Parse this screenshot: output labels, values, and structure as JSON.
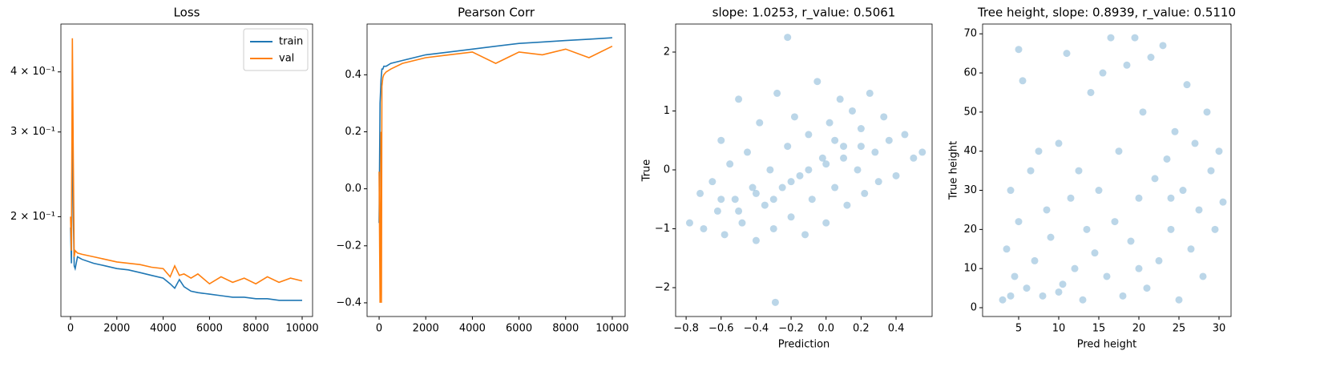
{
  "chart_data": [
    {
      "type": "line",
      "title": "Loss",
      "log_y": true,
      "legend": "upper right",
      "x": [
        0,
        40,
        80,
        120,
        160,
        200,
        300,
        500,
        1000,
        1500,
        2000,
        2500,
        3000,
        3500,
        4000,
        4300,
        4500,
        4700,
        4900,
        5200,
        5500,
        6000,
        6500,
        7000,
        7500,
        8000,
        8500,
        9000,
        9500,
        10000
      ],
      "series": [
        {
          "name": "train",
          "color": "#1f77b4",
          "values": [
            0.19,
            0.16,
            0.35,
            0.2,
            0.158,
            0.156,
            0.165,
            0.163,
            0.16,
            0.158,
            0.156,
            0.155,
            0.153,
            0.151,
            0.149,
            0.145,
            0.142,
            0.148,
            0.143,
            0.14,
            0.139,
            0.138,
            0.137,
            0.136,
            0.136,
            0.135,
            0.135,
            0.134,
            0.134,
            0.134
          ]
        },
        {
          "name": "val",
          "color": "#ff7f0e",
          "values": [
            0.2,
            0.17,
            0.47,
            0.26,
            0.165,
            0.17,
            0.168,
            0.167,
            0.165,
            0.163,
            0.161,
            0.16,
            0.159,
            0.157,
            0.156,
            0.15,
            0.158,
            0.151,
            0.152,
            0.149,
            0.152,
            0.145,
            0.15,
            0.146,
            0.149,
            0.145,
            0.15,
            0.146,
            0.149,
            0.147
          ]
        }
      ],
      "xlim": [
        -415,
        10450
      ],
      "xticks": [
        0,
        2000,
        4000,
        6000,
        8000,
        10000
      ],
      "ylim": [
        0.124,
        0.503
      ],
      "yticks": [
        {
          "value": 0.2,
          "label": "2 × 10⁻¹"
        },
        {
          "value": 0.3,
          "label": "3 × 10⁻¹"
        },
        {
          "value": 0.4,
          "label": "4 × 10⁻¹"
        }
      ]
    },
    {
      "type": "line",
      "title": "Pearson Corr",
      "x": [
        0,
        40,
        80,
        100,
        120,
        160,
        200,
        300,
        500,
        1000,
        2000,
        3000,
        4000,
        5000,
        6000,
        7000,
        8000,
        9000,
        10000
      ],
      "series": [
        {
          "color": "#1f77b4",
          "values": [
            -0.12,
            0.3,
            0.38,
            0.4,
            0.42,
            0.42,
            0.43,
            0.43,
            0.44,
            0.45,
            0.47,
            0.48,
            0.49,
            0.5,
            0.51,
            0.515,
            0.52,
            0.525,
            0.53
          ]
        },
        {
          "color": "#ff7f0e",
          "values": [
            0.06,
            -0.4,
            0.2,
            -0.4,
            0.36,
            0.39,
            0.4,
            0.41,
            0.42,
            0.44,
            0.46,
            0.47,
            0.48,
            0.44,
            0.48,
            0.47,
            0.49,
            0.46,
            0.5
          ]
        }
      ],
      "xlim": [
        -517,
        10552
      ],
      "xticks": [
        0,
        2000,
        4000,
        6000,
        8000,
        10000
      ],
      "ylim": [
        -0.448,
        0.578
      ],
      "yticks": [
        {
          "value": -0.4,
          "label": "−0.4"
        },
        {
          "value": -0.2,
          "label": "−0.2"
        },
        {
          "value": 0,
          "label": "0.0"
        },
        0.2,
        0.4
      ]
    },
    {
      "type": "scatter",
      "title": "slope: 1.0253, r_value: 0.5061",
      "xlabel": "Prediction",
      "ylabel": "True",
      "color": "#1f77b4",
      "alpha": 0.3,
      "x": [
        -0.78,
        -0.72,
        -0.7,
        -0.65,
        -0.62,
        -0.6,
        -0.58,
        -0.55,
        -0.52,
        -0.5,
        -0.48,
        -0.45,
        -0.42,
        -0.4,
        -0.38,
        -0.35,
        -0.32,
        -0.3,
        -0.28,
        -0.25,
        -0.22,
        -0.2,
        -0.18,
        -0.15,
        -0.12,
        -0.1,
        -0.08,
        -0.05,
        -0.02,
        0,
        0.02,
        0.05,
        0.08,
        0.1,
        0.12,
        0.15,
        0.18,
        0.2,
        0.22,
        0.25,
        0.28,
        0.3,
        0.33,
        0.36,
        0.4,
        0.45,
        0.5,
        0.55,
        -0.6,
        -0.4,
        -0.2,
        0,
        0.1,
        -0.5,
        -0.3,
        -0.1,
        0.05,
        0.2,
        -0.22,
        -0.29
      ],
      "y": [
        -0.9,
        -0.4,
        -1.0,
        -0.2,
        -0.7,
        0.5,
        -1.1,
        0.1,
        -0.5,
        1.2,
        -0.9,
        0.3,
        -0.3,
        -1.2,
        0.8,
        -0.6,
        0.0,
        -1.0,
        1.3,
        -0.3,
        0.4,
        -0.8,
        0.9,
        -0.1,
        -1.1,
        0.6,
        -0.5,
        1.5,
        0.2,
        -0.9,
        0.8,
        -0.3,
        1.2,
        0.4,
        -0.6,
        1.0,
        0.0,
        0.7,
        -0.4,
        1.3,
        0.3,
        -0.2,
        0.9,
        0.5,
        -0.1,
        0.6,
        0.2,
        0.3,
        -0.5,
        -0.4,
        -0.2,
        0.1,
        0.2,
        -0.7,
        -0.5,
        0.0,
        0.5,
        0.4,
        2.25,
        -2.25
      ],
      "xlim": [
        -0.86,
        0.606
      ],
      "xticks": [
        {
          "value": -0.8,
          "label": "−0.8"
        },
        {
          "value": -0.6,
          "label": "−0.6"
        },
        {
          "value": -0.4,
          "label": "−0.4"
        },
        {
          "value": -0.2,
          "label": "−0.2"
        },
        {
          "value": 0,
          "label": "0.0"
        },
        0.2,
        0.4
      ],
      "ylim": [
        -2.49,
        2.476
      ],
      "yticks": [
        {
          "value": -2,
          "label": "−2"
        },
        {
          "value": -1,
          "label": "−1"
        },
        0,
        1,
        2
      ]
    },
    {
      "type": "scatter",
      "title": "Tree height, slope: 0.8939, r_value: 0.5110",
      "xlabel": "Pred height",
      "ylabel": "True height",
      "color": "#1f77b4",
      "alpha": 0.3,
      "x": [
        3,
        3.5,
        4,
        4.5,
        5,
        5.5,
        5,
        6,
        6.5,
        7,
        7.5,
        8,
        8.5,
        9,
        10,
        10.5,
        11,
        11.5,
        12,
        12.5,
        13,
        13.5,
        14,
        14.5,
        15,
        15.5,
        16,
        16.5,
        17,
        17.5,
        18,
        18.5,
        19,
        19.5,
        20,
        20.5,
        21,
        21.5,
        22,
        22.5,
        23,
        23.5,
        24,
        24.5,
        25,
        25.5,
        26,
        26.5,
        27,
        27.5,
        28,
        28.5,
        29,
        29.5,
        30,
        30.5,
        4,
        10,
        20,
        24
      ],
      "y": [
        2,
        15,
        30,
        8,
        66,
        58,
        22,
        5,
        35,
        12,
        40,
        3,
        25,
        18,
        42,
        6,
        65,
        28,
        10,
        35,
        2,
        20,
        55,
        14,
        30,
        60,
        8,
        69,
        22,
        40,
        3,
        62,
        17,
        69,
        28,
        50,
        5,
        64,
        33,
        12,
        67,
        38,
        20,
        45,
        2,
        30,
        57,
        15,
        42,
        25,
        8,
        50,
        35,
        20,
        40,
        27,
        3,
        4,
        10,
        28
      ],
      "xlim": [
        0.5,
        31.5
      ],
      "xticks": [
        5,
        10,
        15,
        20,
        25,
        30
      ],
      "ylim": [
        -2.25,
        72.5
      ],
      "yticks": [
        0,
        10,
        20,
        30,
        40,
        50,
        60,
        70
      ]
    }
  ]
}
